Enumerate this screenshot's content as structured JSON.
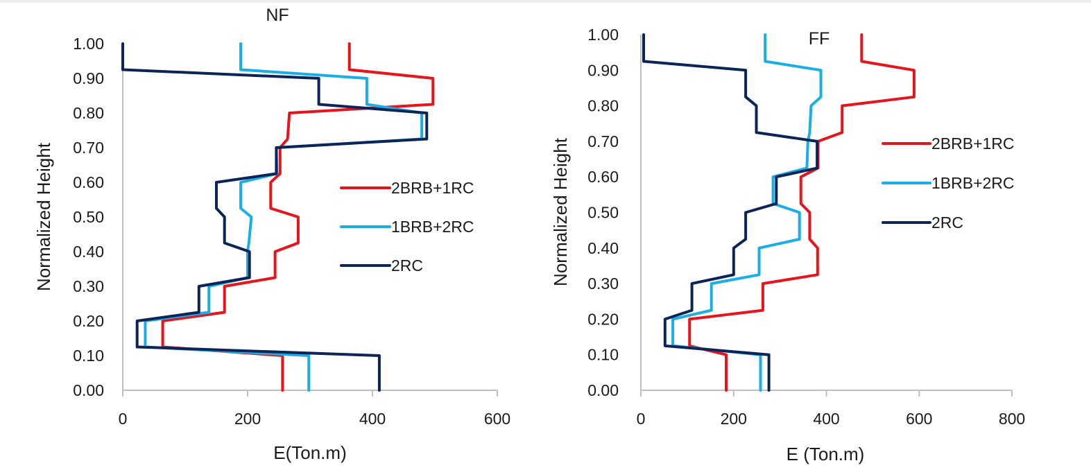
{
  "chart_data": [
    {
      "id": "nf",
      "type": "line",
      "title": "NF",
      "xlabel": "E(Ton.m)",
      "ylabel": "Normalized Height",
      "xlim": [
        0,
        600
      ],
      "ylim": [
        0,
        1
      ],
      "xticks": [
        "0",
        "200",
        "400",
        "600"
      ],
      "yticks": [
        "0.00",
        "0.10",
        "0.20",
        "0.30",
        "0.40",
        "0.50",
        "0.60",
        "0.70",
        "0.80",
        "0.90",
        "1.00"
      ],
      "grid": false,
      "legend_position": "center-right",
      "y": [
        1.0,
        0.925,
        0.9,
        0.825,
        0.8,
        0.725,
        0.7,
        0.625,
        0.6,
        0.525,
        0.5,
        0.425,
        0.4,
        0.325,
        0.3,
        0.225,
        0.2,
        0.125,
        0.1,
        0.0
      ],
      "series": [
        {
          "name": "2BRB+1RC",
          "color": "#e8141b",
          "x": [
            363,
            363,
            497,
            497,
            267,
            264,
            252,
            252,
            237,
            237,
            281,
            281,
            244,
            244,
            163,
            163,
            64,
            64,
            256,
            256
          ]
        },
        {
          "name": "1BRB+2RC",
          "color": "#1aaee6",
          "x": [
            189,
            189,
            391,
            391,
            479,
            479,
            246,
            247,
            189,
            189,
            206,
            202,
            200,
            200,
            138,
            138,
            36,
            36,
            298,
            298
          ]
        },
        {
          "name": "2RC",
          "color": "#0b2558",
          "x": [
            0,
            0,
            314,
            314,
            487,
            487,
            246,
            246,
            150,
            150,
            163,
            163,
            203,
            203,
            122,
            122,
            23,
            23,
            411,
            411
          ]
        }
      ]
    },
    {
      "id": "ff",
      "type": "line",
      "title": "FF",
      "xlabel": "E (Ton.m)",
      "ylabel": "Normalized Height",
      "xlim": [
        0,
        800
      ],
      "ylim": [
        0,
        1
      ],
      "xticks": [
        "0",
        "200",
        "400",
        "600",
        "800"
      ],
      "yticks": [
        "0.00",
        "0.10",
        "0.20",
        "0.30",
        "0.40",
        "0.50",
        "0.60",
        "0.70",
        "0.80",
        "0.90",
        "1.00"
      ],
      "grid": false,
      "legend_position": "center-right",
      "y": [
        1.0,
        0.925,
        0.9,
        0.825,
        0.8,
        0.725,
        0.7,
        0.625,
        0.6,
        0.525,
        0.5,
        0.425,
        0.4,
        0.325,
        0.3,
        0.225,
        0.2,
        0.125,
        0.1,
        0.0
      ],
      "series": [
        {
          "name": "2BRB+1RC",
          "color": "#e8141b",
          "x": [
            476,
            476,
            589,
            589,
            434,
            434,
            382,
            382,
            345,
            345,
            364,
            364,
            381,
            381,
            263,
            263,
            105,
            105,
            184,
            184
          ]
        },
        {
          "name": "1BRB+2RC",
          "color": "#1aaee6",
          "x": [
            268,
            268,
            388,
            388,
            367,
            364,
            360,
            358,
            285,
            285,
            342,
            342,
            255,
            255,
            152,
            152,
            69,
            69,
            258,
            258
          ]
        },
        {
          "name": "2RC",
          "color": "#0b2558",
          "x": [
            6,
            6,
            226,
            226,
            249,
            249,
            380,
            380,
            292,
            292,
            226,
            226,
            200,
            200,
            110,
            110,
            52,
            52,
            276,
            276
          ]
        }
      ]
    }
  ]
}
